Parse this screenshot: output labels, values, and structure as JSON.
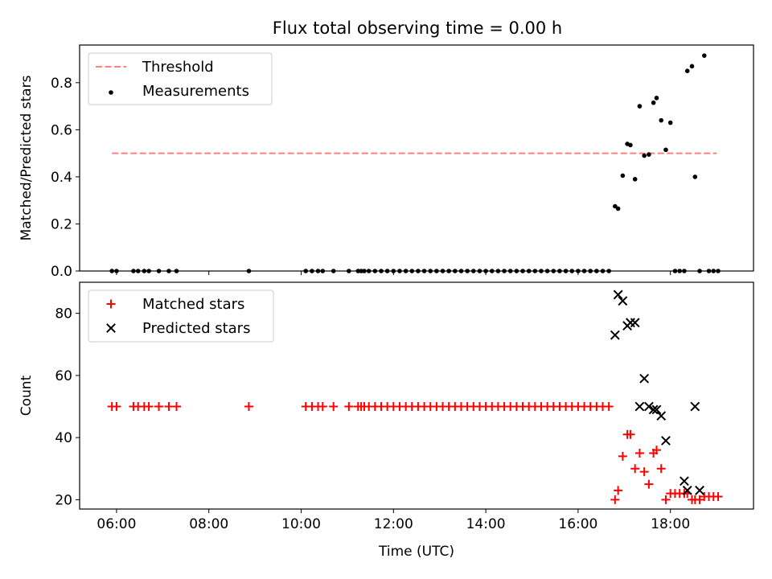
{
  "chart_data": [
    {
      "type": "scatter",
      "title": "Flux total observing time = 0.00 h",
      "xlabel": "",
      "ylabel": "Matched/Predicted stars",
      "xlim": [
        "05:12",
        "19:48"
      ],
      "ylim": [
        0,
        0.96
      ],
      "yticks": [
        0.0,
        0.2,
        0.4,
        0.6,
        0.8
      ],
      "yticklabels": [
        "0.0",
        "0.2",
        "0.4",
        "0.6",
        "0.8"
      ],
      "xticks": [
        "06:00",
        "08:00",
        "10:00",
        "12:00",
        "14:00",
        "16:00",
        "18:00"
      ],
      "legend_position": "top-left",
      "series": [
        {
          "name": "Threshold",
          "style": "dashed-line",
          "color": "#ff7f7f",
          "x": [
            "05:54",
            "19:00"
          ],
          "values": [
            0.5,
            0.5
          ]
        },
        {
          "name": "Measurements",
          "style": "dot",
          "color": "#000000",
          "x": [
            "05:54",
            "06:00",
            "06:22",
            "06:28",
            "06:36",
            "06:42",
            "06:55",
            "07:08",
            "07:18",
            "08:52",
            "10:06",
            "10:14",
            "10:22",
            "10:28",
            "10:42",
            "11:02",
            "11:14",
            "11:18",
            "11:22",
            "11:28",
            "11:36",
            "11:44",
            "11:52",
            "12:00",
            "12:08",
            "12:16",
            "12:24",
            "12:32",
            "12:40",
            "12:48",
            "12:56",
            "13:04",
            "13:12",
            "13:20",
            "13:28",
            "13:36",
            "13:44",
            "13:52",
            "14:00",
            "14:08",
            "14:16",
            "14:24",
            "14:32",
            "14:40",
            "14:48",
            "14:56",
            "15:04",
            "15:12",
            "15:20",
            "15:28",
            "15:36",
            "15:44",
            "15:52",
            "16:00",
            "16:08",
            "16:16",
            "16:24",
            "16:32",
            "16:40",
            "16:48",
            "16:52",
            "16:58",
            "17:04",
            "17:08",
            "17:14",
            "17:20",
            "17:26",
            "17:32",
            "17:38",
            "17:42",
            "17:48",
            "17:54",
            "18:00",
            "18:06",
            "18:12",
            "18:18",
            "18:22",
            "18:28",
            "18:32",
            "18:38",
            "18:44",
            "18:50",
            "18:56",
            "19:02"
          ],
          "values": [
            0,
            0,
            0,
            0,
            0,
            0,
            0,
            0,
            0,
            0,
            0,
            0,
            0,
            0,
            0,
            0,
            0,
            0,
            0,
            0,
            0,
            0,
            0,
            0,
            0,
            0,
            0,
            0,
            0,
            0,
            0,
            0,
            0,
            0,
            0,
            0,
            0,
            0,
            0,
            0,
            0,
            0,
            0,
            0,
            0,
            0,
            0,
            0,
            0,
            0,
            0,
            0,
            0,
            0,
            0,
            0,
            0,
            0,
            0,
            0.275,
            0.265,
            0.405,
            0.54,
            0.535,
            0.39,
            0.7,
            0.49,
            0.495,
            0.715,
            0.735,
            0.64,
            0.515,
            0.63,
            0,
            0,
            0,
            0.85,
            0.87,
            0.4,
            0,
            0.915,
            0,
            0,
            0
          ]
        }
      ]
    },
    {
      "type": "scatter",
      "title": "",
      "xlabel": "Time (UTC)",
      "ylabel": "Count",
      "xlim": [
        "05:12",
        "19:48"
      ],
      "ylim": [
        17,
        90
      ],
      "yticks": [
        20,
        40,
        60,
        80
      ],
      "yticklabels": [
        "20",
        "40",
        "60",
        "80"
      ],
      "xticks": [
        "06:00",
        "08:00",
        "10:00",
        "12:00",
        "14:00",
        "16:00",
        "18:00"
      ],
      "legend_position": "top-left",
      "series": [
        {
          "name": "Matched stars",
          "style": "plus",
          "color": "#ff0000",
          "x": [
            "05:54",
            "06:00",
            "06:22",
            "06:28",
            "06:36",
            "06:42",
            "06:55",
            "07:08",
            "07:18",
            "08:52",
            "10:06",
            "10:14",
            "10:22",
            "10:28",
            "10:42",
            "11:02",
            "11:14",
            "11:18",
            "11:22",
            "11:28",
            "11:36",
            "11:44",
            "11:52",
            "12:00",
            "12:08",
            "12:16",
            "12:24",
            "12:32",
            "12:40",
            "12:48",
            "12:56",
            "13:04",
            "13:12",
            "13:20",
            "13:28",
            "13:36",
            "13:44",
            "13:52",
            "14:00",
            "14:08",
            "14:16",
            "14:24",
            "14:32",
            "14:40",
            "14:48",
            "14:56",
            "15:04",
            "15:12",
            "15:20",
            "15:28",
            "15:36",
            "15:44",
            "15:52",
            "16:00",
            "16:08",
            "16:16",
            "16:24",
            "16:32",
            "16:40",
            "16:48",
            "16:52",
            "16:58",
            "17:04",
            "17:08",
            "17:14",
            "17:20",
            "17:26",
            "17:32",
            "17:38",
            "17:42",
            "17:48",
            "17:54",
            "18:00",
            "18:06",
            "18:12",
            "18:18",
            "18:22",
            "18:28",
            "18:32",
            "18:38",
            "18:44",
            "18:50",
            "18:56",
            "19:02"
          ],
          "values": [
            50,
            50,
            50,
            50,
            50,
            50,
            50,
            50,
            50,
            50,
            50,
            50,
            50,
            50,
            50,
            50,
            50,
            50,
            50,
            50,
            50,
            50,
            50,
            50,
            50,
            50,
            50,
            50,
            50,
            50,
            50,
            50,
            50,
            50,
            50,
            50,
            50,
            50,
            50,
            50,
            50,
            50,
            50,
            50,
            50,
            50,
            50,
            50,
            50,
            50,
            50,
            50,
            50,
            50,
            50,
            50,
            50,
            50,
            50,
            20,
            23,
            34,
            41,
            41,
            30,
            35,
            29,
            25,
            35,
            36,
            30,
            20,
            22,
            22,
            22,
            22,
            22,
            20,
            20,
            20,
            21,
            21,
            21,
            21
          ]
        },
        {
          "name": "Predicted stars",
          "style": "x",
          "color": "#000000",
          "x": [
            "16:48",
            "16:52",
            "16:58",
            "17:04",
            "17:08",
            "17:14",
            "17:20",
            "17:26",
            "17:32",
            "17:38",
            "17:42",
            "17:48",
            "17:54",
            "18:18",
            "18:22",
            "18:32",
            "18:38"
          ],
          "values": [
            73,
            86,
            84,
            76,
            77,
            77,
            50,
            59,
            50,
            49,
            49,
            47,
            39,
            26,
            23,
            50,
            23
          ]
        }
      ]
    }
  ]
}
